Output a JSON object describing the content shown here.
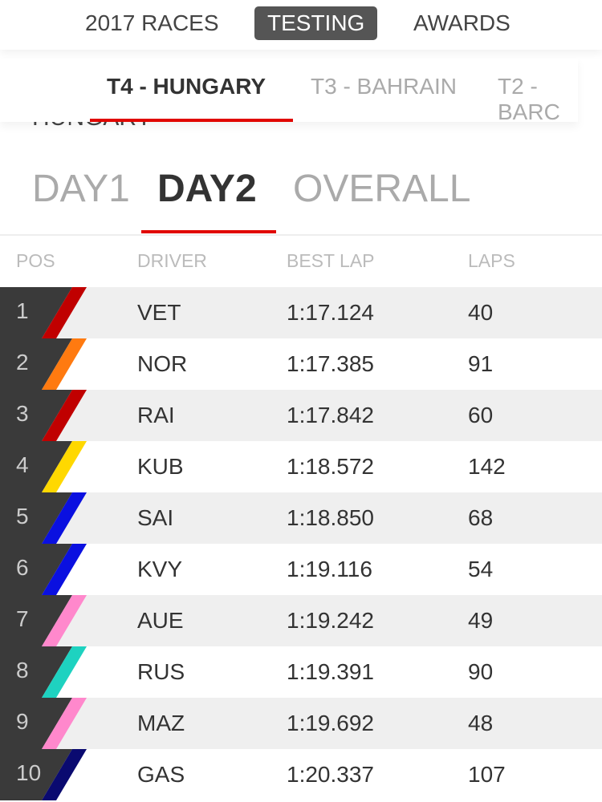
{
  "nav": {
    "tabs": [
      "2017 RACES",
      "TESTING",
      "AWARDS"
    ],
    "active": 1
  },
  "subnav": {
    "tabs": [
      "T4 - HUNGARY",
      "T3 - BAHRAIN",
      "T2 - BARC"
    ],
    "active": 0
  },
  "section_title": "HUNGARY",
  "day_tabs": {
    "tabs": [
      "DAY1",
      "DAY2",
      "OVERALL"
    ],
    "active": 1
  },
  "table": {
    "columns": [
      "POS",
      "DRIVER",
      "BEST LAP",
      "LAPS"
    ],
    "rows": [
      {
        "pos": "1",
        "driver": "VET",
        "best_lap": "1:17.124",
        "laps": "40",
        "color": "#c00000"
      },
      {
        "pos": "2",
        "driver": "NOR",
        "best_lap": "1:17.385",
        "laps": "91",
        "color": "#ff7a10"
      },
      {
        "pos": "3",
        "driver": "RAI",
        "best_lap": "1:17.842",
        "laps": "60",
        "color": "#c00000"
      },
      {
        "pos": "4",
        "driver": "KUB",
        "best_lap": "1:18.572",
        "laps": "142",
        "color": "#ffd800"
      },
      {
        "pos": "5",
        "driver": "SAI",
        "best_lap": "1:18.850",
        "laps": "68",
        "color": "#0a10e0"
      },
      {
        "pos": "6",
        "driver": "KVY",
        "best_lap": "1:19.116",
        "laps": "54",
        "color": "#0a10e0"
      },
      {
        "pos": "7",
        "driver": "AUE",
        "best_lap": "1:19.242",
        "laps": "49",
        "color": "#ff88cc"
      },
      {
        "pos": "8",
        "driver": "RUS",
        "best_lap": "1:19.391",
        "laps": "90",
        "color": "#1ed2c0"
      },
      {
        "pos": "9",
        "driver": "MAZ",
        "best_lap": "1:19.692",
        "laps": "48",
        "color": "#ff88cc"
      },
      {
        "pos": "10",
        "driver": "GAS",
        "best_lap": "1:20.337",
        "laps": "107",
        "color": "#0a0a70"
      }
    ]
  }
}
